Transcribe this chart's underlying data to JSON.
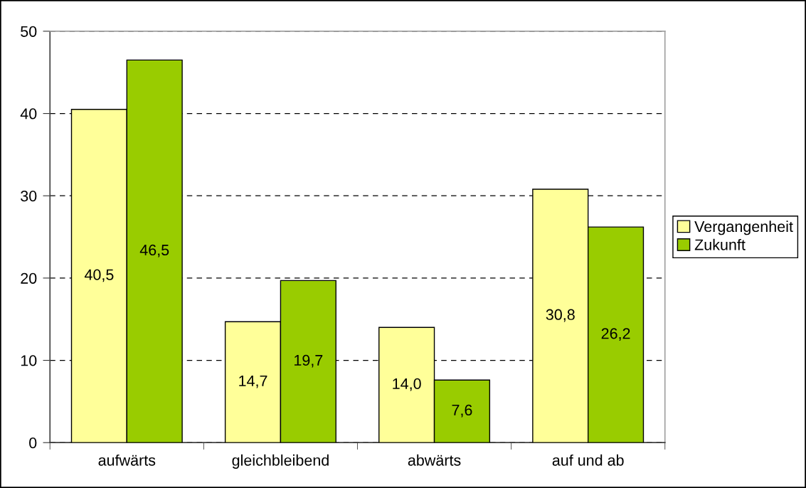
{
  "chart_data": {
    "type": "bar",
    "categories": [
      "aufwärts",
      "gleichbleibend",
      "abwärts",
      "auf und ab"
    ],
    "series": [
      {
        "name": "Vergangenheit",
        "color": "#ffff99",
        "values": [
          40.5,
          14.7,
          14.0,
          30.8
        ],
        "value_labels": [
          "40,5",
          "14,7",
          "14,0",
          "30,8"
        ]
      },
      {
        "name": "Zukunft",
        "color": "#99cc00",
        "values": [
          46.5,
          19.7,
          7.6,
          26.2
        ],
        "value_labels": [
          "46,5",
          "19,7",
          "7,6",
          "26,2"
        ]
      }
    ],
    "ylim": [
      0,
      50
    ],
    "yticks": [
      0,
      10,
      20,
      30,
      40,
      50
    ],
    "grid": "y",
    "legend": "right"
  }
}
